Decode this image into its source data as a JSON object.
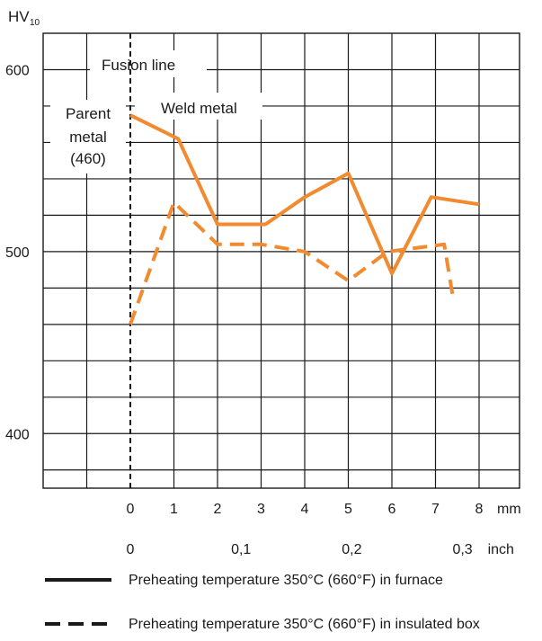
{
  "chart_data": {
    "type": "line",
    "ylabel_main": "HV",
    "ylabel_sub": "10",
    "ylim": [
      370,
      620
    ],
    "yticks": [
      400,
      500,
      600
    ],
    "x_mm_ticks": [
      "0",
      "1",
      "2",
      "3",
      "4",
      "5",
      "6",
      "7",
      "8"
    ],
    "x_mm_unit": "mm",
    "x_inch_ticks": [
      "0",
      "0,1",
      "0,2",
      "0,3"
    ],
    "x_inch_unit": "inch",
    "xlim_mm": [
      -2,
      9
    ],
    "grid": true,
    "legend_placement": "bottom",
    "annotations": {
      "fusion_line": "Fusion line",
      "weld_metal": "Weld metal",
      "parent_metal": [
        "Parent",
        "metal",
        "(460)"
      ]
    },
    "series": [
      {
        "name": "Preheating temperature 350°C (660°F) in furnace",
        "style": "solid",
        "color": "#F28A30",
        "x": [
          0,
          1.1,
          2.0,
          3.1,
          4.0,
          5.0,
          6.0,
          6.9,
          8.0
        ],
        "y": [
          575,
          562,
          515,
          515,
          530,
          543,
          488,
          530,
          526
        ]
      },
      {
        "name": "Preheating temperature 350°C (660°F) in insulated box",
        "style": "dashed",
        "color": "#F28A30",
        "x": [
          0,
          1.0,
          2.0,
          3.0,
          4.0,
          5.0,
          5.9,
          7.2,
          7.4
        ],
        "y": [
          460,
          527,
          504,
          504,
          500,
          484,
          500,
          504,
          475
        ]
      }
    ]
  }
}
